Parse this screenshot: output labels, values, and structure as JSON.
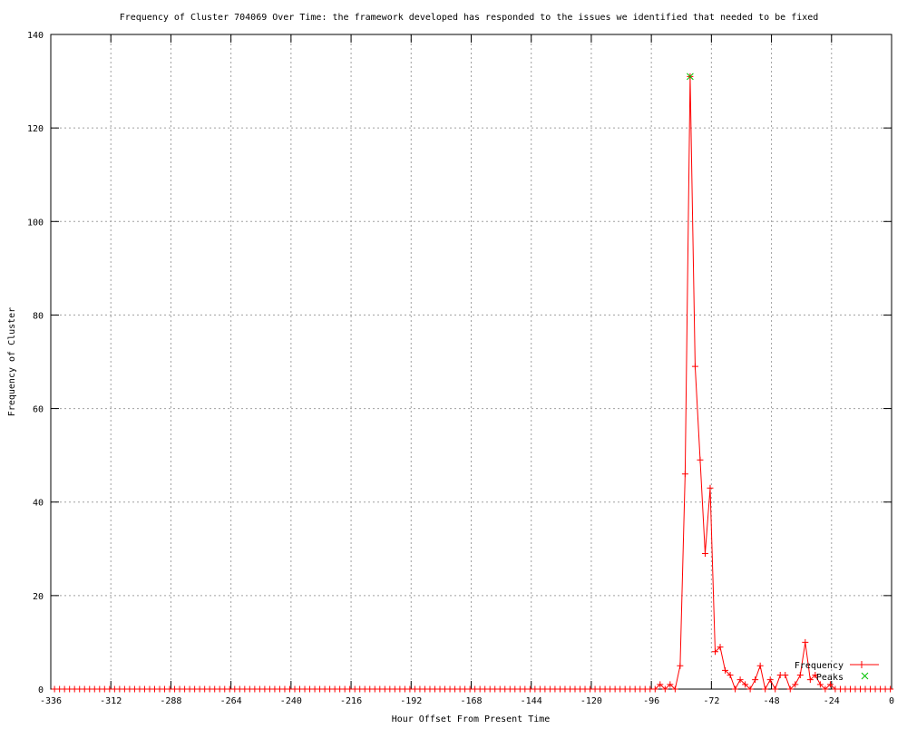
{
  "chart_data": {
    "type": "line",
    "title": "Frequency of Cluster 704069 Over Time: the framework developed has responded to the issues we identified that needed to be fixed",
    "xlabel": "Hour Offset From Present Time",
    "ylabel": "Frequency of Cluster",
    "xlim": [
      -336,
      0
    ],
    "ylim": [
      0,
      140
    ],
    "xticks": [
      -336,
      -312,
      -288,
      -264,
      -240,
      -216,
      -192,
      -168,
      -144,
      -120,
      -96,
      -72,
      -48,
      -24,
      0
    ],
    "yticks": [
      0,
      20,
      40,
      60,
      80,
      100,
      120,
      140
    ],
    "grid": true,
    "legend_position": "bottom-right",
    "x_first": -334.5,
    "x_step": 2,
    "series": [
      {
        "name": "Frequency",
        "color": "#ff0000",
        "marker": "plus",
        "values": [
          0,
          0,
          0,
          0,
          0,
          0,
          0,
          0,
          0,
          0,
          0,
          0,
          0,
          0,
          0,
          0,
          0,
          0,
          0,
          0,
          0,
          0,
          0,
          0,
          0,
          0,
          0,
          0,
          0,
          0,
          0,
          0,
          0,
          0,
          0,
          0,
          0,
          0,
          0,
          0,
          0,
          0,
          0,
          0,
          0,
          0,
          0,
          0,
          0,
          0,
          0,
          0,
          0,
          0,
          0,
          0,
          0,
          0,
          0,
          0,
          0,
          0,
          0,
          0,
          0,
          0,
          0,
          0,
          0,
          0,
          0,
          0,
          0,
          0,
          0,
          0,
          0,
          0,
          0,
          0,
          0,
          0,
          0,
          0,
          0,
          0,
          0,
          0,
          0,
          0,
          0,
          0,
          0,
          0,
          0,
          0,
          0,
          0,
          0,
          0,
          0,
          0,
          0,
          0,
          0,
          0,
          0,
          0,
          0,
          0,
          0,
          0,
          0,
          0,
          0,
          0,
          0,
          0,
          0,
          0,
          0,
          1,
          0,
          1,
          0,
          5,
          46,
          131,
          69,
          49,
          29,
          43,
          8,
          9,
          4,
          3,
          0,
          2,
          1,
          0,
          2,
          5,
          0,
          2,
          0,
          3,
          3,
          0,
          1,
          3,
          10,
          2,
          3,
          1,
          0,
          1,
          0,
          0,
          0,
          0,
          0,
          0,
          0,
          0,
          0,
          0,
          0,
          0
        ]
      },
      {
        "name": "Peaks",
        "color": "#00c000",
        "marker": "cross",
        "points": [
          [
            -80.5,
            131
          ]
        ]
      }
    ]
  }
}
